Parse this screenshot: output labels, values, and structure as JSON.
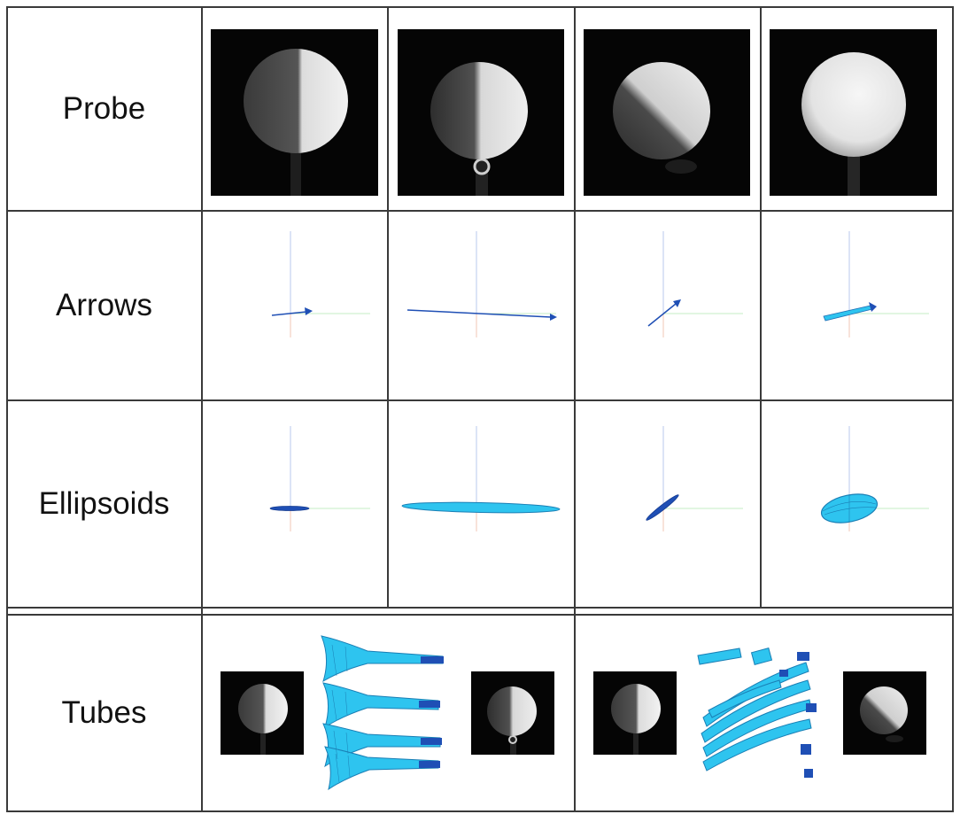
{
  "row_labels": {
    "probe": "Probe",
    "arrows": "Arrows",
    "ellipsoids": "Ellipsoids",
    "tubes": "Tubes"
  },
  "icons": {
    "probe": [
      "golf-ball-photo",
      "golf-ball-photo",
      "golf-ball-photo",
      "golf-ball-photo"
    ],
    "arrows": [
      "arrow-glyph",
      "arrow-glyph",
      "arrow-glyph",
      "arrow-glyph"
    ],
    "ellipsoids": [
      "ellipsoid-glyph",
      "ellipsoid-glyph",
      "ellipsoid-glyph",
      "ellipsoid-glyph"
    ],
    "tubes": [
      "tube-glyph",
      "tube-glyph"
    ]
  },
  "colors": {
    "grid": "#3a3a3a",
    "glyph_blue": "#1f4fb5",
    "glyph_cyan": "#2ec4ef",
    "photo_bg": "#050505"
  }
}
